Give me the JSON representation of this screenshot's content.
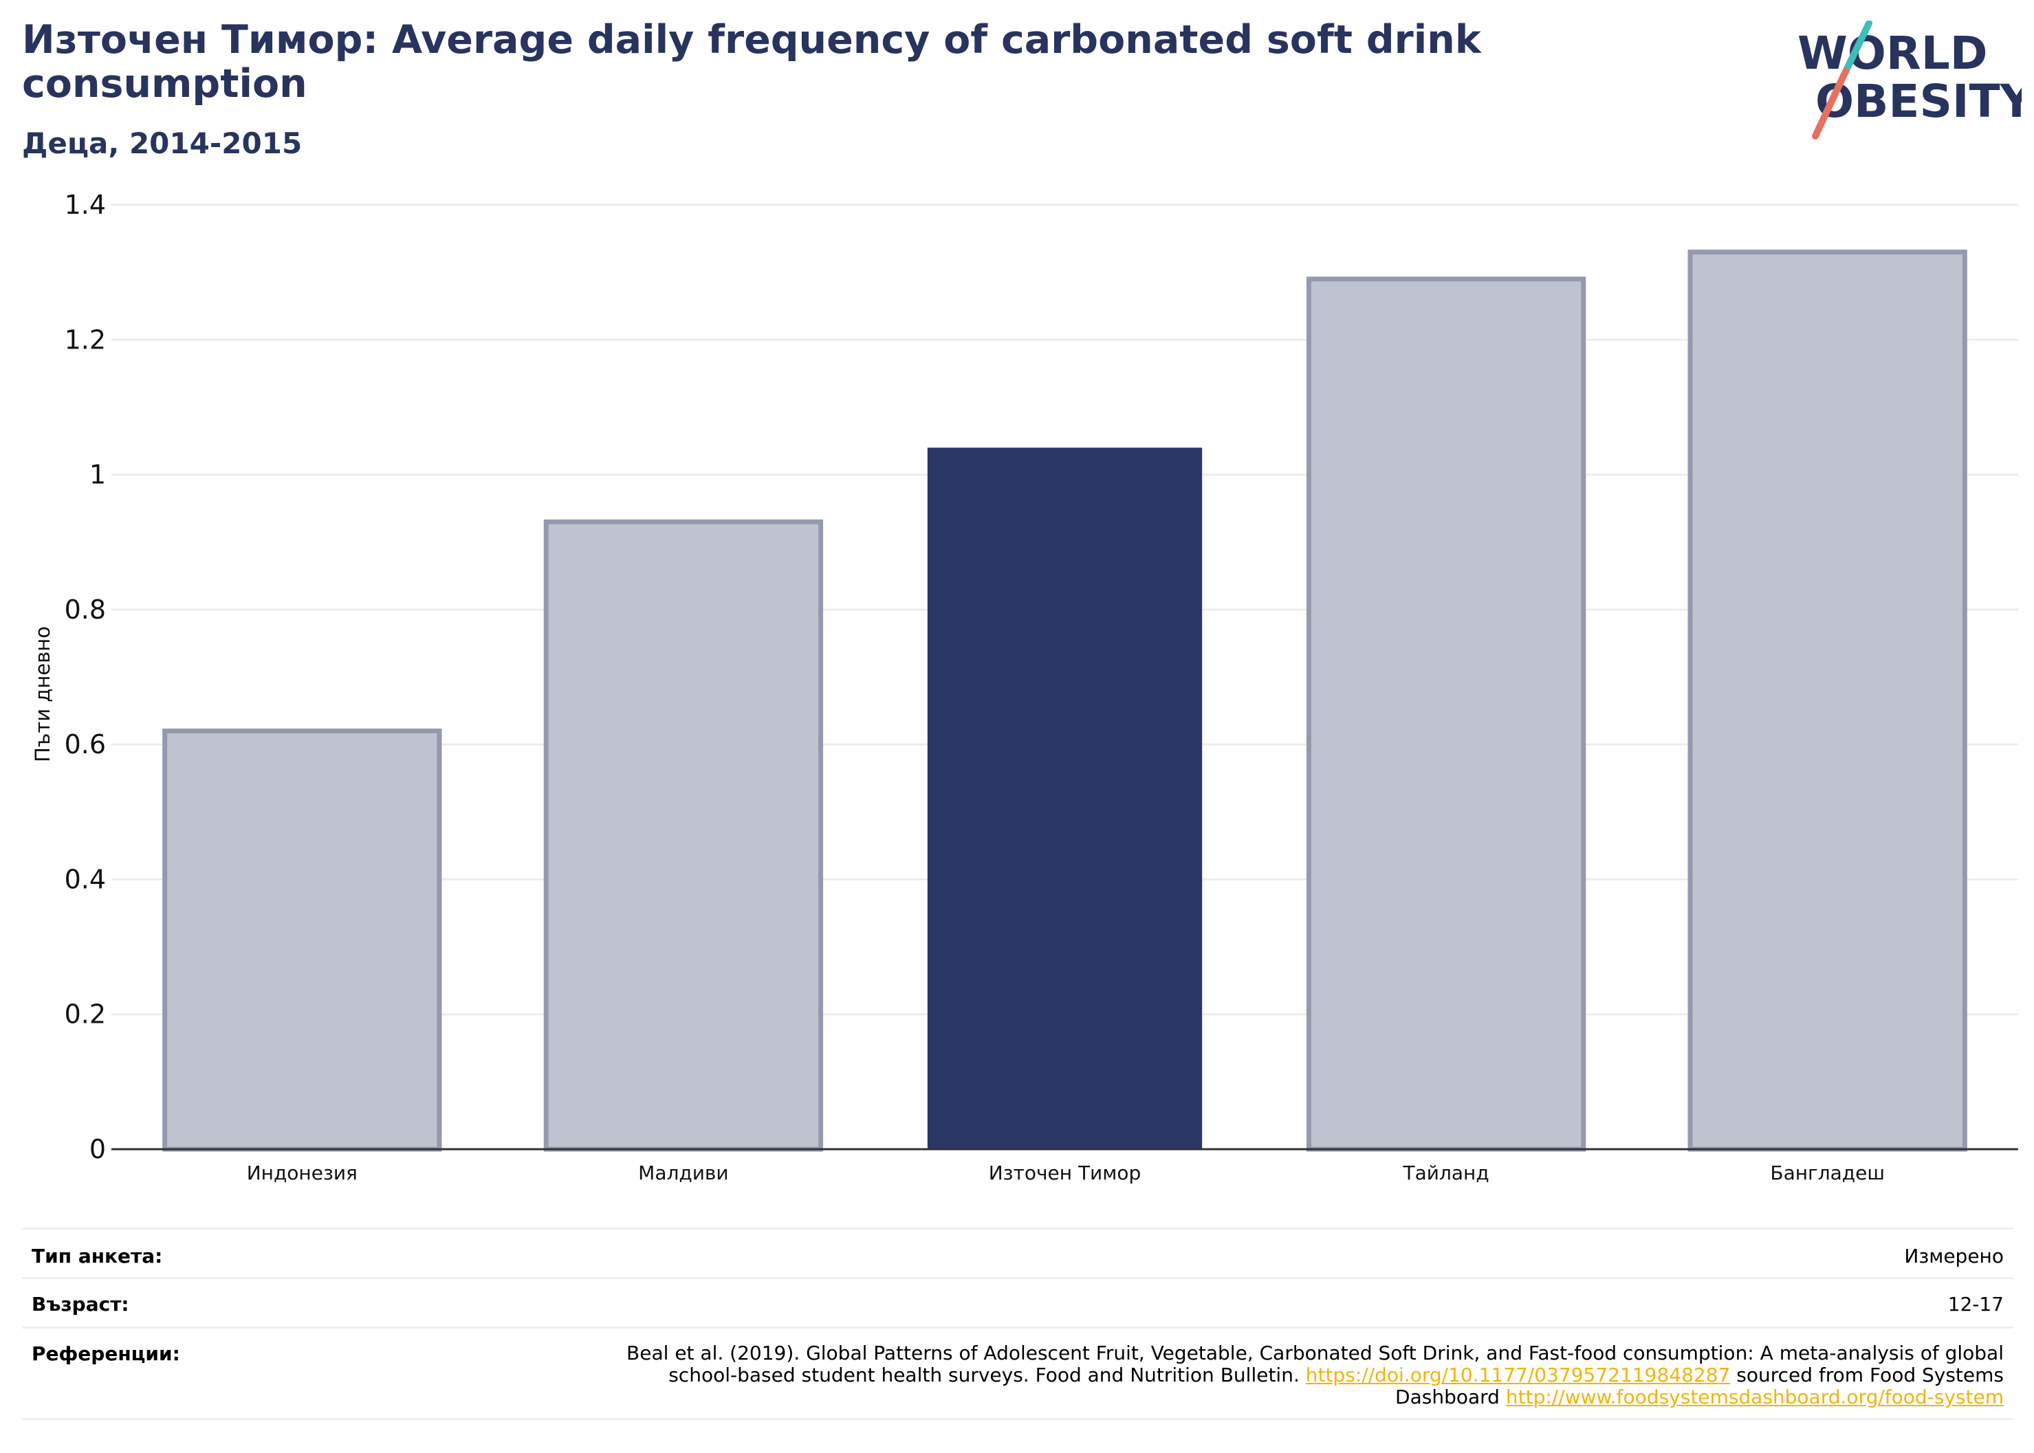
{
  "header": {
    "title": "Източен Тимор: Average daily frequency of carbonated soft drink consumption",
    "subtitle": "Деца, 2014-2015",
    "logo_text": "WORLD OBESITY"
  },
  "colors": {
    "title": "#28345e",
    "highlight_bar": "#2a3663",
    "other_bar_fill": "#bfc3cf",
    "other_bar_stroke": "#9599ad",
    "link": "#f2b40c",
    "logo_teal": "#3bbfb8",
    "logo_coral": "#e8705e"
  },
  "chart_data": {
    "type": "bar",
    "ylabel": "Пъти дневно",
    "xlabel": "",
    "ylim": [
      0,
      1.4
    ],
    "yticks": [
      "0",
      "0.2",
      "0.4",
      "0.6",
      "0.8",
      "1",
      "1.2",
      "1.4"
    ],
    "categories": [
      "Индонезия",
      "Малдиви",
      "Източен Тимор",
      "Тайланд",
      "Бангладеш"
    ],
    "values": [
      0.62,
      0.93,
      1.04,
      1.29,
      1.33
    ],
    "highlight": "Източен Тимор",
    "grid": true,
    "legend": "none"
  },
  "meta": {
    "survey_type_label": "Тип анкета:",
    "survey_type_value": "Измерено",
    "age_label": "Възраст:",
    "age_value": "12-17",
    "references_label": "Референции:",
    "references_text": "Beal et al. (2019). Global Patterns of Adolescent Fruit, Vegetable, Carbonated Soft Drink, and Fast-food consumption: A meta-analysis of global school-based student health surveys. Food and Nutrition Bulletin.",
    "references_link1": "https://doi.org/10.1177/0379572119848287",
    "references_mid": "sourced from Food Systems Dashboard",
    "references_link2": "http://www.foodsystemsdashboard.org/food-system"
  }
}
